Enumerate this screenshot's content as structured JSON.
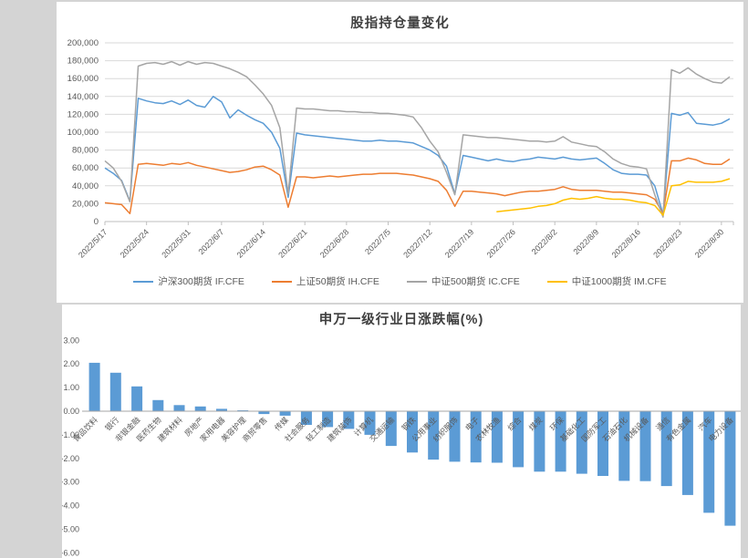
{
  "background_color": "#d4d4d4",
  "panel_color": "#ffffff",
  "accent_bar_color": "#5B9BD5",
  "chart_data": [
    {
      "type": "line",
      "title": "股指持仓量变化",
      "legend_position": "bottom",
      "grid": true,
      "ylim": [
        0,
        200000
      ],
      "y_tick_labels": [
        "200,000",
        "180,000",
        "160,000",
        "140,000",
        "120,000",
        "100,000",
        "80,000",
        "60,000",
        "40,000",
        "20,000",
        "0"
      ],
      "x": [
        "2022/5/17",
        "2022/5/18",
        "2022/5/19",
        "2022/5/20",
        "2022/5/23",
        "2022/5/24",
        "2022/5/25",
        "2022/5/26",
        "2022/5/27",
        "2022/5/30",
        "2022/5/31",
        "2022/6/1",
        "2022/6/2",
        "2022/6/6",
        "2022/6/7",
        "2022/6/8",
        "2022/6/9",
        "2022/6/10",
        "2022/6/13",
        "2022/6/14",
        "2022/6/15",
        "2022/6/16",
        "2022/6/17",
        "2022/6/20",
        "2022/6/21",
        "2022/6/22",
        "2022/6/23",
        "2022/6/24",
        "2022/6/27",
        "2022/6/28",
        "2022/6/29",
        "2022/6/30",
        "2022/7/1",
        "2022/7/4",
        "2022/7/5",
        "2022/7/6",
        "2022/7/7",
        "2022/7/8",
        "2022/7/11",
        "2022/7/12",
        "2022/7/13",
        "2022/7/14",
        "2022/7/15",
        "2022/7/18",
        "2022/7/19",
        "2022/7/20",
        "2022/7/21",
        "2022/7/22",
        "2022/7/25",
        "2022/7/26",
        "2022/7/27",
        "2022/7/28",
        "2022/7/29",
        "2022/8/1",
        "2022/8/2",
        "2022/8/3",
        "2022/8/4",
        "2022/8/5",
        "2022/8/8",
        "2022/8/9",
        "2022/8/10",
        "2022/8/11",
        "2022/8/12",
        "2022/8/15",
        "2022/8/16",
        "2022/8/17",
        "2022/8/18",
        "2022/8/19",
        "2022/8/22",
        "2022/8/23",
        "2022/8/24",
        "2022/8/25",
        "2022/8/26",
        "2022/8/29",
        "2022/8/30",
        "2022/8/31"
      ],
      "x_tick_indices": [
        0,
        5,
        10,
        14,
        19,
        24,
        29,
        34,
        39,
        44,
        49,
        54,
        59,
        64,
        69,
        74
      ],
      "x_tick_labels": [
        "2022/5/17",
        "2022/5/24",
        "2022/5/31",
        "2022/6/7",
        "2022/6/14",
        "2022/6/21",
        "2022/6/28",
        "2022/7/5",
        "2022/7/12",
        "2022/7/19",
        "2022/7/26",
        "2022/8/2",
        "2022/8/9",
        "2022/8/16",
        "2022/8/23",
        "2022/8/30"
      ],
      "series": [
        {
          "name": "沪深300期货 IF.CFE",
          "color": "#5B9BD5",
          "values": [
            60000,
            54000,
            46000,
            23000,
            138000,
            135000,
            133000,
            132000,
            135000,
            131000,
            136000,
            130000,
            128000,
            140000,
            134000,
            116000,
            125000,
            119000,
            114000,
            110000,
            100000,
            82000,
            27000,
            99000,
            97000,
            96000,
            95000,
            94000,
            93000,
            92000,
            91000,
            90000,
            90000,
            91000,
            90000,
            90000,
            89000,
            88000,
            84000,
            80000,
            74000,
            62000,
            31000,
            74000,
            72000,
            70000,
            68000,
            70000,
            68000,
            67000,
            69000,
            70000,
            72000,
            71000,
            70000,
            72000,
            70000,
            69000,
            70000,
            71000,
            65000,
            58000,
            54000,
            53000,
            53000,
            52000,
            40000,
            8000,
            121000,
            119000,
            122000,
            110000,
            109000,
            108000,
            110000,
            115000
          ]
        },
        {
          "name": "上证50期货 IH.CFE",
          "color": "#ED7D31",
          "values": [
            21000,
            20000,
            19000,
            9000,
            64000,
            65000,
            64000,
            63000,
            65000,
            64000,
            66000,
            63000,
            61000,
            59000,
            57000,
            55000,
            56000,
            58000,
            61000,
            62000,
            58000,
            52000,
            16000,
            50000,
            50000,
            49000,
            50000,
            51000,
            50000,
            51000,
            52000,
            53000,
            53000,
            54000,
            54000,
            54000,
            53000,
            52000,
            50000,
            48000,
            45000,
            35000,
            17000,
            34000,
            34000,
            33000,
            32000,
            31000,
            29000,
            31000,
            33000,
            34000,
            34000,
            35000,
            36000,
            39000,
            36000,
            35000,
            35000,
            35000,
            34000,
            33000,
            33000,
            32000,
            31000,
            30000,
            25000,
            9000,
            68000,
            68000,
            71000,
            69000,
            65000,
            64000,
            64000,
            70000
          ]
        },
        {
          "name": "中证500期货 IC.CFE",
          "color": "#A5A5A5",
          "values": [
            68000,
            60000,
            45000,
            22000,
            174000,
            177000,
            178000,
            176000,
            179000,
            175000,
            179000,
            176000,
            178000,
            177000,
            174000,
            171000,
            167000,
            162000,
            153000,
            143000,
            130000,
            105000,
            31000,
            127000,
            126000,
            126000,
            125000,
            124000,
            124000,
            123000,
            123000,
            122000,
            122000,
            121000,
            121000,
            120000,
            119000,
            117000,
            105000,
            90000,
            78000,
            55000,
            30000,
            97000,
            96000,
            95000,
            94000,
            94000,
            93000,
            92000,
            91000,
            90000,
            90000,
            89000,
            90000,
            95000,
            89000,
            87000,
            85000,
            84000,
            78000,
            70000,
            65000,
            62000,
            61000,
            59000,
            30000,
            5000,
            170000,
            166000,
            172000,
            165000,
            160000,
            156000,
            155000,
            162000
          ]
        },
        {
          "name": "中证1000期货 IM.CFE",
          "color": "#FFC000",
          "values": [
            null,
            null,
            null,
            null,
            null,
            null,
            null,
            null,
            null,
            null,
            null,
            null,
            null,
            null,
            null,
            null,
            null,
            null,
            null,
            null,
            null,
            null,
            null,
            null,
            null,
            null,
            null,
            null,
            null,
            null,
            null,
            null,
            null,
            null,
            null,
            null,
            null,
            null,
            null,
            null,
            null,
            null,
            null,
            null,
            null,
            null,
            null,
            11000,
            12000,
            13000,
            14000,
            15000,
            17000,
            18000,
            20000,
            24000,
            26000,
            25000,
            26000,
            28000,
            26000,
            25000,
            25000,
            24000,
            22000,
            21000,
            18000,
            7000,
            40000,
            41000,
            45000,
            44000,
            44000,
            44000,
            45000,
            48000
          ]
        }
      ]
    },
    {
      "type": "bar",
      "title": "申万一级行业日涨跌幅(%)",
      "bar_color": "#5B9BD5",
      "grid": false,
      "ylim": [
        -6,
        3
      ],
      "y_tick_labels": [
        "3.00",
        "2.00",
        "1.00",
        "0.00",
        "-1.00",
        "-2.00",
        "-3.00",
        "-4.00",
        "-5.00",
        "-6.00"
      ],
      "y_tick_values": [
        3,
        2,
        1,
        0,
        -1,
        -2,
        -3,
        -4,
        -5,
        -6
      ],
      "categories": [
        "食品饮料",
        "银行",
        "非银金融",
        "医药生物",
        "建筑材料",
        "房地产",
        "家用电器",
        "美容护理",
        "商贸零售",
        "传媒",
        "社会服务",
        "轻工制造",
        "建筑装饰",
        "计算机",
        "交通运输",
        "钢铁",
        "公用事业",
        "纺织服饰",
        "电子",
        "农林牧渔",
        "综合",
        "煤炭",
        "环保",
        "基础化工",
        "国防军工",
        "石油石化",
        "机械设备",
        "通信",
        "有色金属",
        "汽车",
        "电力设备"
      ],
      "values": [
        2.05,
        1.63,
        1.05,
        0.47,
        0.26,
        0.2,
        0.1,
        0.04,
        -0.12,
        -0.19,
        -0.58,
        -0.67,
        -0.75,
        -1.0,
        -1.47,
        -1.75,
        -2.05,
        -2.14,
        -2.17,
        -2.18,
        -2.37,
        -2.56,
        -2.56,
        -2.65,
        -2.74,
        -2.95,
        -2.96,
        -3.17,
        -3.55,
        -4.3,
        -4.85
      ]
    }
  ],
  "styles": {
    "gridline_color": "#D9D9D9",
    "axis_color": "#BFBFBF",
    "tick_label_color": "#595959",
    "title_color": "#3F3F3F"
  }
}
